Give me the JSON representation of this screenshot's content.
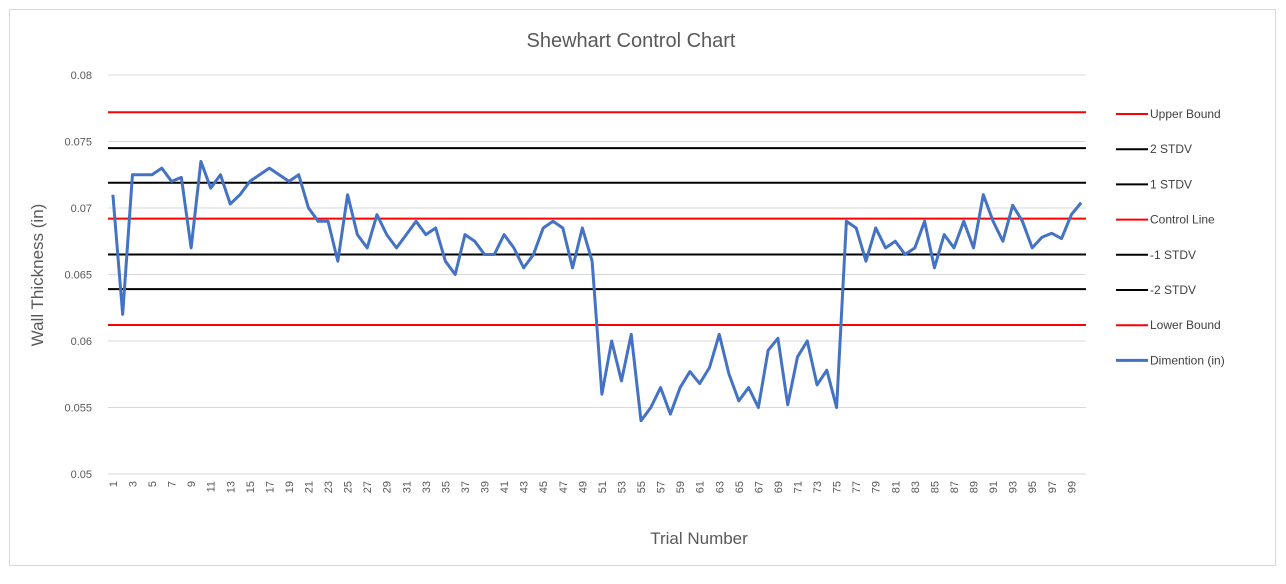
{
  "chart_data": {
    "type": "line",
    "title": "Shewhart Control Chart",
    "xlabel": "Trial Number",
    "ylabel": "Wall Thickness (in)",
    "ylim": [
      0.05,
      0.08
    ],
    "y_ticks": [
      "0.05",
      "0.055",
      "0.06",
      "0.065",
      "0.07",
      "0.075",
      "0.08"
    ],
    "x_tick_labels": [
      "1",
      "3",
      "5",
      "7",
      "9",
      "11",
      "13",
      "15",
      "17",
      "19",
      "21",
      "23",
      "25",
      "27",
      "29",
      "31",
      "33",
      "35",
      "37",
      "39",
      "41",
      "43",
      "45",
      "47",
      "49",
      "51",
      "53",
      "55",
      "57",
      "59",
      "61",
      "63",
      "65",
      "67",
      "69",
      "71",
      "73",
      "75",
      "77",
      "79",
      "81",
      "83",
      "85",
      "87",
      "89",
      "91",
      "93",
      "95",
      "97",
      "99"
    ],
    "grid": true,
    "legend_position": "right",
    "reference_lines": [
      {
        "name": "Upper Bound",
        "value": 0.0772,
        "color": "#ff0000"
      },
      {
        "name": "2 STDV",
        "value": 0.0745,
        "color": "#000000"
      },
      {
        "name": "1 STDV",
        "value": 0.0719,
        "color": "#000000"
      },
      {
        "name": "Control Line",
        "value": 0.0692,
        "color": "#ff0000"
      },
      {
        "name": "-1 STDV",
        "value": 0.0665,
        "color": "#000000"
      },
      {
        "name": "-2 STDV",
        "value": 0.0639,
        "color": "#000000"
      },
      {
        "name": "Lower Bound",
        "value": 0.0612,
        "color": "#ff0000"
      }
    ],
    "series": [
      {
        "name": "Dimention (in)",
        "color": "#4472c4",
        "x_start": 1,
        "values": [
          0.071,
          0.062,
          0.0725,
          0.0725,
          0.0725,
          0.073,
          0.072,
          0.0723,
          0.067,
          0.0735,
          0.0715,
          0.0725,
          0.0703,
          0.071,
          0.072,
          0.0725,
          0.073,
          0.0725,
          0.072,
          0.0725,
          0.07,
          0.069,
          0.069,
          0.066,
          0.071,
          0.068,
          0.067,
          0.0695,
          0.068,
          0.067,
          0.068,
          0.069,
          0.068,
          0.0685,
          0.066,
          0.065,
          0.068,
          0.0675,
          0.0665,
          0.0665,
          0.068,
          0.067,
          0.0655,
          0.0665,
          0.0685,
          0.069,
          0.0685,
          0.0655,
          0.0685,
          0.066,
          0.056,
          0.06,
          0.057,
          0.0605,
          0.054,
          0.055,
          0.0565,
          0.0545,
          0.0565,
          0.0577,
          0.0568,
          0.058,
          0.0605,
          0.0575,
          0.0555,
          0.0565,
          0.055,
          0.0593,
          0.0602,
          0.0552,
          0.0588,
          0.06,
          0.0567,
          0.0578,
          0.055,
          0.069,
          0.0685,
          0.066,
          0.0685,
          0.067,
          0.0675,
          0.0665,
          0.067,
          0.069,
          0.0655,
          0.068,
          0.067,
          0.069,
          0.067,
          0.071,
          0.069,
          0.0675,
          0.0702,
          0.069,
          0.067,
          0.0678,
          0.0681,
          0.0677,
          0.0695,
          0.0704
        ]
      }
    ]
  }
}
